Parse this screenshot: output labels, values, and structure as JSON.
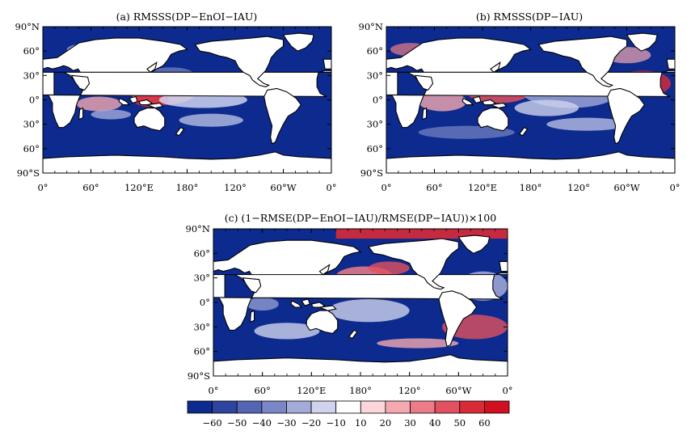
{
  "panels": [
    {
      "id": "a",
      "title": "(a) RMSSS(DP−EnOI−IAU)"
    },
    {
      "id": "b",
      "title": "(b) RMSSS(DP−IAU)"
    },
    {
      "id": "c",
      "title": "(c) (1−RMSE(DP−EnOI−IAU)/RMSE(DP−IAU))×100"
    }
  ],
  "lat_ticks": [
    "90°N",
    "60°",
    "30°",
    "0°",
    "30°",
    "60°",
    "90°S"
  ],
  "lon_ticks": [
    "0°",
    "60°",
    "120°E",
    "180°",
    "120°",
    "60°W",
    "0°"
  ],
  "colorbar": {
    "labels": [
      "−60",
      "−50",
      "−40",
      "−30",
      "−20",
      "−10",
      "10",
      "20",
      "30",
      "40",
      "50",
      "60"
    ],
    "colors": [
      "#0d2a8e",
      "#2e45a0",
      "#5466b3",
      "#7a86c6",
      "#a3abd9",
      "#cfd3ee",
      "#ffffff",
      "#fbd6da",
      "#f4a9b1",
      "#ec7d88",
      "#e2515f",
      "#d92a38",
      "#d10f20"
    ]
  },
  "colors": {
    "land": "#ffffff",
    "ocean_base": "#0d2a8e",
    "coast": "#000000"
  }
}
